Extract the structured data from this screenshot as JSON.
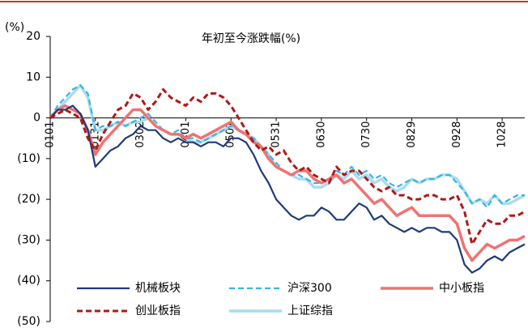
{
  "chart_data": {
    "type": "line",
    "title": "年初至今涨跌幅(%)",
    "y_label": "(%)",
    "categories": [
      "0101",
      null,
      null,
      null,
      null,
      null,
      "0131",
      null,
      null,
      null,
      null,
      null,
      "0302",
      null,
      null,
      null,
      null,
      null,
      "0401",
      null,
      null,
      null,
      null,
      null,
      "0501",
      null,
      null,
      null,
      null,
      null,
      "0531",
      null,
      null,
      null,
      null,
      null,
      "0630",
      null,
      null,
      null,
      null,
      null,
      "0730",
      null,
      null,
      null,
      null,
      null,
      "0829",
      null,
      null,
      null,
      null,
      null,
      "0928",
      null,
      null,
      null,
      null,
      null,
      "1028",
      null,
      null,
      null
    ],
    "ylim": [
      -50,
      20
    ],
    "yticks": [
      20,
      10,
      0,
      {
        "value": -10,
        "label": "(10)"
      },
      {
        "value": -20,
        "label": "(20)"
      },
      {
        "value": -30,
        "label": "(30)"
      },
      {
        "value": -40,
        "label": "(40)"
      },
      {
        "value": -50,
        "label": "(50)"
      }
    ],
    "series": [
      {
        "name": "机械板块",
        "color": "#1f3a78",
        "dash": false,
        "width": 2.2,
        "values": [
          0,
          2,
          2,
          3,
          1,
          -3,
          -12,
          -10,
          -8,
          -7,
          -5,
          -4,
          -2,
          -3,
          -3,
          -5,
          -6,
          -5,
          -6,
          -6,
          -7,
          -6,
          -6,
          -7,
          -5,
          -5,
          -6,
          -9,
          -13,
          -16,
          -20,
          -22,
          -24,
          -25,
          -24,
          -24,
          -22,
          -23,
          -25,
          -25,
          -23,
          -21,
          -22,
          -25,
          -24,
          -26,
          -27,
          -28,
          -27,
          -28,
          -27,
          -27,
          -28,
          -28,
          -30,
          -36,
          -38,
          -37,
          -35,
          -34,
          -35,
          -33,
          -32,
          -31
        ]
      },
      {
        "name": "沪深300",
        "color": "#3cb4e0",
        "dash": true,
        "width": 2.2,
        "values": [
          0,
          3,
          5,
          7,
          8,
          6,
          -3,
          -2,
          -2,
          -1,
          -2,
          -1,
          0,
          1,
          -1,
          -3,
          -4,
          -3,
          -5,
          -5,
          -6,
          -5,
          -4,
          -3,
          -2,
          -3,
          -4,
          -5,
          -7,
          -9,
          -11,
          -13,
          -14,
          -14,
          -15,
          -16,
          -16,
          -15,
          -13,
          -14,
          -12,
          -14,
          -13,
          -15,
          -14,
          -16,
          -17,
          -16,
          -15,
          -16,
          -15,
          -15,
          -14,
          -14,
          -16,
          -18,
          -21,
          -20,
          -22,
          -19,
          -21,
          -20,
          -19,
          -19
        ]
      },
      {
        "name": "中小板指",
        "color": "#f07272",
        "dash": false,
        "width": 3.5,
        "values": [
          0,
          2,
          3,
          2,
          1,
          -3,
          -9,
          -6,
          -4,
          -2,
          0,
          2,
          2,
          0,
          -2,
          -3,
          -4,
          -4,
          -5,
          -4,
          -5,
          -4,
          -3,
          -2,
          -1,
          -3,
          -4,
          -6,
          -7,
          -10,
          -12,
          -13,
          -14,
          -13,
          -13,
          -15,
          -16,
          -15,
          -14,
          -16,
          -15,
          -17,
          -19,
          -21,
          -20,
          -22,
          -24,
          -23,
          -22,
          -24,
          -24,
          -24,
          -24,
          -24,
          -26,
          -32,
          -35,
          -33,
          -31,
          -32,
          -31,
          -30,
          -30,
          -29
        ]
      },
      {
        "name": "创业板指",
        "color": "#b01818",
        "dash": true,
        "width": 3,
        "values": [
          0,
          1,
          2,
          1,
          0,
          -5,
          -8,
          -4,
          -1,
          2,
          3,
          6,
          5,
          2,
          4,
          7,
          5,
          4,
          3,
          5,
          4,
          6,
          6,
          5,
          3,
          0,
          -3,
          -6,
          -8,
          -7,
          -9,
          -8,
          -11,
          -13,
          -12,
          -14,
          -15,
          -16,
          -12,
          -14,
          -13,
          -13,
          -15,
          -17,
          -18,
          -17,
          -19,
          -19,
          -20,
          -20,
          -19,
          -19,
          -20,
          -20,
          -19,
          -23,
          -31,
          -28,
          -25,
          -26,
          -26,
          -24,
          -24,
          -23
        ]
      },
      {
        "name": "上证综指",
        "color": "#a9dcf2",
        "dash": false,
        "width": 3.5,
        "values": [
          0,
          2,
          4,
          6,
          8,
          5,
          -3,
          -3,
          -2,
          -1,
          -2,
          -1,
          -1,
          0,
          -2,
          -3,
          -4,
          -4,
          -5,
          -6,
          -6,
          -5,
          -4,
          -3,
          -2,
          -3,
          -4,
          -5,
          -7,
          -9,
          -12,
          -13,
          -14,
          -15,
          -15,
          -17,
          -17,
          -16,
          -14,
          -15,
          -13,
          -15,
          -14,
          -16,
          -15,
          -17,
          -18,
          -17,
          -15,
          -16,
          -15,
          -15,
          -14,
          -14,
          -15,
          -18,
          -21,
          -20,
          -21,
          -19,
          -21,
          -21,
          -20,
          -19
        ]
      }
    ]
  }
}
